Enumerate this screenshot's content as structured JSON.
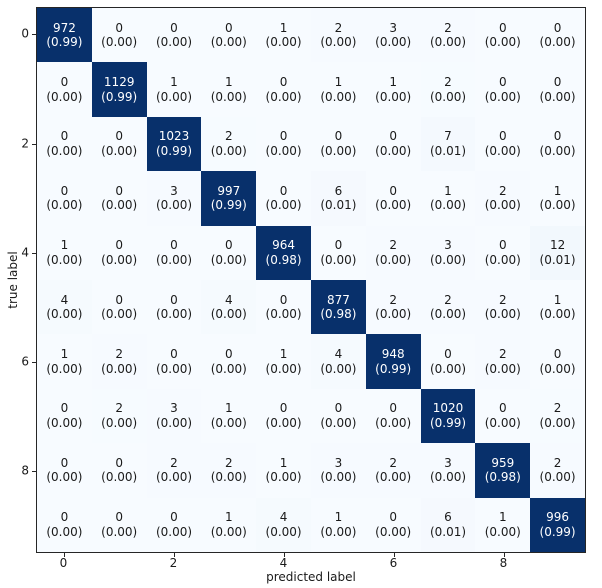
{
  "chart_data": {
    "type": "heatmap",
    "subtype": "confusion-matrix",
    "title": "",
    "xlabel": "predicted label",
    "ylabel": "true label",
    "n_classes": 10,
    "x_ticks": [
      {
        "index": 0,
        "label": "0"
      },
      {
        "index": 2,
        "label": "2"
      },
      {
        "index": 4,
        "label": "4"
      },
      {
        "index": 6,
        "label": "6"
      },
      {
        "index": 8,
        "label": "8"
      }
    ],
    "y_ticks": [
      {
        "index": 0,
        "label": "0"
      },
      {
        "index": 2,
        "label": "2"
      },
      {
        "index": 4,
        "label": "4"
      },
      {
        "index": 6,
        "label": "6"
      },
      {
        "index": 8,
        "label": "8"
      }
    ],
    "counts": [
      [
        972,
        0,
        0,
        0,
        1,
        2,
        3,
        2,
        0,
        0
      ],
      [
        0,
        1129,
        1,
        1,
        0,
        1,
        1,
        2,
        0,
        0
      ],
      [
        0,
        0,
        1023,
        2,
        0,
        0,
        0,
        7,
        0,
        0
      ],
      [
        0,
        0,
        3,
        997,
        0,
        6,
        0,
        1,
        2,
        1
      ],
      [
        1,
        0,
        0,
        0,
        964,
        0,
        2,
        3,
        0,
        12
      ],
      [
        4,
        0,
        0,
        4,
        0,
        877,
        2,
        2,
        2,
        1
      ],
      [
        1,
        2,
        0,
        0,
        1,
        4,
        948,
        0,
        2,
        0
      ],
      [
        0,
        2,
        3,
        1,
        0,
        0,
        0,
        1020,
        0,
        2
      ],
      [
        0,
        0,
        2,
        2,
        1,
        3,
        2,
        3,
        959,
        2
      ],
      [
        0,
        0,
        0,
        1,
        4,
        1,
        0,
        6,
        1,
        996
      ]
    ],
    "prop_labels": [
      [
        "(0.99)",
        "(0.00)",
        "(0.00)",
        "(0.00)",
        "(0.00)",
        "(0.00)",
        "(0.00)",
        "(0.00)",
        "(0.00)",
        "(0.00)"
      ],
      [
        "(0.00)",
        "(0.99)",
        "(0.00)",
        "(0.00)",
        "(0.00)",
        "(0.00)",
        "(0.00)",
        "(0.00)",
        "(0.00)",
        "(0.00)"
      ],
      [
        "(0.00)",
        "(0.00)",
        "(0.99)",
        "(0.00)",
        "(0.00)",
        "(0.00)",
        "(0.00)",
        "(0.01)",
        "(0.00)",
        "(0.00)"
      ],
      [
        "(0.00)",
        "(0.00)",
        "(0.00)",
        "(0.99)",
        "(0.00)",
        "(0.01)",
        "(0.00)",
        "(0.00)",
        "(0.00)",
        "(0.00)"
      ],
      [
        "(0.00)",
        "(0.00)",
        "(0.00)",
        "(0.00)",
        "(0.98)",
        "(0.00)",
        "(0.00)",
        "(0.00)",
        "(0.00)",
        "(0.01)"
      ],
      [
        "(0.00)",
        "(0.00)",
        "(0.00)",
        "(0.00)",
        "(0.00)",
        "(0.98)",
        "(0.00)",
        "(0.00)",
        "(0.00)",
        "(0.00)"
      ],
      [
        "(0.00)",
        "(0.00)",
        "(0.00)",
        "(0.00)",
        "(0.00)",
        "(0.00)",
        "(0.99)",
        "(0.00)",
        "(0.00)",
        "(0.00)"
      ],
      [
        "(0.00)",
        "(0.00)",
        "(0.00)",
        "(0.00)",
        "(0.00)",
        "(0.00)",
        "(0.00)",
        "(0.99)",
        "(0.00)",
        "(0.00)"
      ],
      [
        "(0.00)",
        "(0.00)",
        "(0.00)",
        "(0.00)",
        "(0.00)",
        "(0.00)",
        "(0.00)",
        "(0.00)",
        "(0.98)",
        "(0.00)"
      ],
      [
        "(0.00)",
        "(0.00)",
        "(0.00)",
        "(0.00)",
        "(0.00)",
        "(0.00)",
        "(0.00)",
        "(0.01)",
        "(0.00)",
        "(0.99)"
      ]
    ],
    "colors": {
      "cmap_low": "#f7fbff",
      "cmap_mid": "#c6dbef",
      "cmap_high": "#08306b",
      "diag_text": "#ffffff",
      "offdiag_text": "#1a1a1a",
      "spine": "#262626"
    },
    "layout": {
      "grid": "off",
      "legend": "none",
      "colorbar": "none"
    }
  }
}
